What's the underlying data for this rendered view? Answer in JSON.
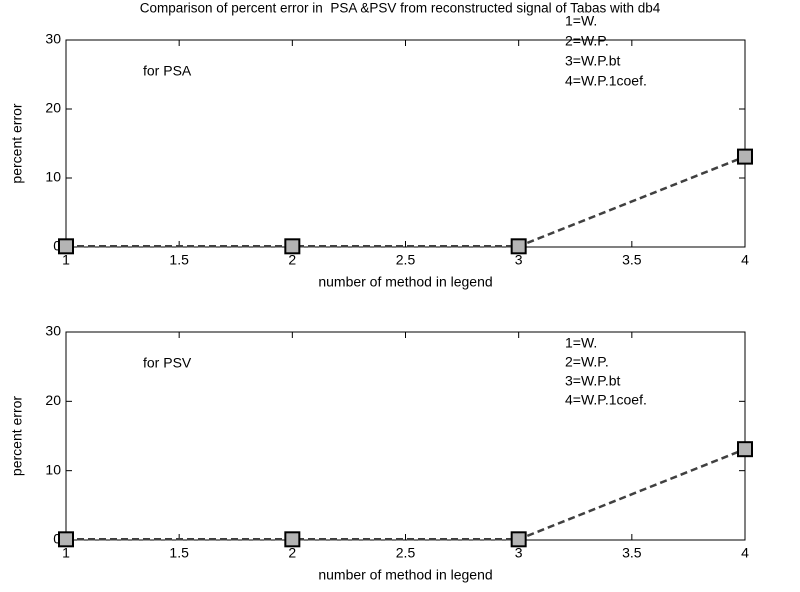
{
  "chart_data": [
    {
      "type": "line",
      "title": "Comparison of percent error in  PSA &PSV from reconstructed signal of Tabas with db4",
      "xlabel": "number of method in legend",
      "ylabel": "percent error",
      "x": [
        1,
        2,
        3,
        4
      ],
      "values": [
        0.1,
        0.1,
        0.1,
        13.1
      ],
      "xlim": [
        1,
        4
      ],
      "ylim": [
        0,
        30
      ],
      "xticks": [
        1,
        1.5,
        2,
        2.5,
        3,
        3.5,
        4
      ],
      "yticks": [
        0,
        10,
        20,
        30
      ],
      "color": "#404040",
      "marker_color": "#b4b4b4",
      "annotations": [
        "for PSA",
        "1=W.",
        "2=W.P.",
        "3=W.P.bt",
        "4=W.P.1coef."
      ]
    },
    {
      "type": "line",
      "xlabel": "number of method in legend",
      "ylabel": "percent error",
      "x": [
        1,
        2,
        3,
        4
      ],
      "values": [
        0.1,
        0.1,
        0.1,
        13.1
      ],
      "xlim": [
        1,
        4
      ],
      "ylim": [
        0,
        30
      ],
      "xticks": [
        1,
        1.5,
        2,
        2.5,
        3,
        3.5,
        4
      ],
      "yticks": [
        0,
        10,
        20,
        30
      ],
      "color": "#404040",
      "marker_color": "#b4b4b4",
      "annotations": [
        "for PSV",
        "1=W.",
        "2=W.P.",
        "3=W.P.bt",
        "4=W.P.1coef."
      ]
    }
  ]
}
